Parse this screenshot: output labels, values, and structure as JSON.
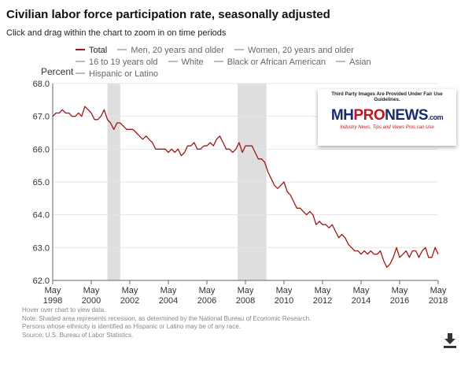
{
  "header": {
    "title": "Civilian labor force participation rate, seasonally adjusted",
    "subtitle": "Click and drag within the chart to zoom in on time periods"
  },
  "legend": [
    {
      "label": "Total",
      "color": "#a31515",
      "active": true
    },
    {
      "label": "Men, 20 years and older",
      "color": "#bbbbbb",
      "active": false
    },
    {
      "label": "Women, 20 years and older",
      "color": "#bbbbbb",
      "active": false
    },
    {
      "label": "16 to 19 years old",
      "color": "#bbbbbb",
      "active": false
    },
    {
      "label": "White",
      "color": "#bbbbbb",
      "active": false
    },
    {
      "label": "Black or African American",
      "color": "#bbbbbb",
      "active": false
    },
    {
      "label": "Asian",
      "color": "#bbbbbb",
      "active": false
    },
    {
      "label": "Hispanic or Latino",
      "color": "#bbbbbb",
      "active": false
    }
  ],
  "notes": [
    "Hover over chart to view data.",
    "Note: Shaded area represents recession, as determined by the National Bureau of Economic Research.",
    "Persons whose ethnicity is identified as Hispanic or Latino may be of any race.",
    "Source: U.S. Bureau of Labor Statistics."
  ],
  "watermark": {
    "note": "Third Party Images Are Provided Under Fair Use Guidelines.",
    "logo_a": "MH",
    "logo_b": "PRO",
    "logo_c": "NEWS",
    "logo_d": ".com",
    "tagline": "Industry News, Tips and Views Pros can Use"
  },
  "icons": {
    "download": "download-icon"
  },
  "chart_data": {
    "type": "line",
    "title": "Civilian labor force participation rate, seasonally adjusted",
    "ylabel": "Percent",
    "xlabel": "",
    "ylim": [
      62.0,
      68.0
    ],
    "xlim": [
      1998.33,
      2018.33
    ],
    "yticks": [
      "62.0",
      "63.0",
      "64.0",
      "65.0",
      "66.0",
      "67.0",
      "68.0"
    ],
    "xticks": [
      {
        "month": "May",
        "year": "1998",
        "value": 1998.33
      },
      {
        "month": "May",
        "year": "2000",
        "value": 2000.33
      },
      {
        "month": "May",
        "year": "2002",
        "value": 2002.33
      },
      {
        "month": "May",
        "year": "2004",
        "value": 2004.33
      },
      {
        "month": "May",
        "year": "2006",
        "value": 2006.33
      },
      {
        "month": "May",
        "year": "2008",
        "value": 2008.33
      },
      {
        "month": "May",
        "year": "2010",
        "value": 2010.33
      },
      {
        "month": "May",
        "year": "2012",
        "value": 2012.33
      },
      {
        "month": "May",
        "year": "2014",
        "value": 2014.33
      },
      {
        "month": "May",
        "year": "2016",
        "value": 2016.33
      },
      {
        "month": "May",
        "year": "2018",
        "value": 2018.33
      }
    ],
    "recessions": [
      [
        2001.17,
        2001.83
      ],
      [
        2007.92,
        2009.42
      ]
    ],
    "grid": "horizontal",
    "legend_position": "top",
    "series": [
      {
        "name": "Total",
        "color": "#a31515",
        "points": [
          [
            1998.33,
            67.0
          ],
          [
            1998.5,
            67.1
          ],
          [
            1998.67,
            67.1
          ],
          [
            1998.83,
            67.2
          ],
          [
            1999.0,
            67.1
          ],
          [
            1999.17,
            67.1
          ],
          [
            1999.33,
            67.0
          ],
          [
            1999.5,
            67.0
          ],
          [
            1999.67,
            67.1
          ],
          [
            1999.83,
            67.0
          ],
          [
            2000.0,
            67.3
          ],
          [
            2000.17,
            67.2
          ],
          [
            2000.33,
            67.1
          ],
          [
            2000.5,
            66.9
          ],
          [
            2000.67,
            66.9
          ],
          [
            2000.83,
            67.0
          ],
          [
            2001.0,
            67.2
          ],
          [
            2001.17,
            66.9
          ],
          [
            2001.33,
            66.8
          ],
          [
            2001.5,
            66.6
          ],
          [
            2001.67,
            66.8
          ],
          [
            2001.83,
            66.8
          ],
          [
            2002.0,
            66.7
          ],
          [
            2002.17,
            66.6
          ],
          [
            2002.33,
            66.6
          ],
          [
            2002.5,
            66.6
          ],
          [
            2002.67,
            66.5
          ],
          [
            2002.83,
            66.4
          ],
          [
            2003.0,
            66.3
          ],
          [
            2003.17,
            66.4
          ],
          [
            2003.33,
            66.3
          ],
          [
            2003.5,
            66.2
          ],
          [
            2003.67,
            66.0
          ],
          [
            2003.83,
            66.0
          ],
          [
            2004.0,
            66.0
          ],
          [
            2004.17,
            66.0
          ],
          [
            2004.33,
            65.9
          ],
          [
            2004.5,
            66.0
          ],
          [
            2004.67,
            65.9
          ],
          [
            2004.83,
            66.0
          ],
          [
            2005.0,
            65.8
          ],
          [
            2005.17,
            65.9
          ],
          [
            2005.33,
            66.1
          ],
          [
            2005.5,
            66.1
          ],
          [
            2005.67,
            66.2
          ],
          [
            2005.83,
            66.0
          ],
          [
            2006.0,
            66.0
          ],
          [
            2006.17,
            66.1
          ],
          [
            2006.33,
            66.1
          ],
          [
            2006.5,
            66.2
          ],
          [
            2006.67,
            66.1
          ],
          [
            2006.83,
            66.3
          ],
          [
            2007.0,
            66.4
          ],
          [
            2007.17,
            66.2
          ],
          [
            2007.33,
            66.0
          ],
          [
            2007.5,
            66.0
          ],
          [
            2007.67,
            65.9
          ],
          [
            2007.83,
            66.0
          ],
          [
            2008.0,
            66.2
          ],
          [
            2008.17,
            65.9
          ],
          [
            2008.33,
            66.1
          ],
          [
            2008.5,
            66.1
          ],
          [
            2008.67,
            66.1
          ],
          [
            2008.83,
            65.9
          ],
          [
            2009.0,
            65.7
          ],
          [
            2009.17,
            65.7
          ],
          [
            2009.33,
            65.6
          ],
          [
            2009.5,
            65.3
          ],
          [
            2009.67,
            65.1
          ],
          [
            2009.83,
            64.9
          ],
          [
            2010.0,
            64.8
          ],
          [
            2010.17,
            64.9
          ],
          [
            2010.33,
            65.0
          ],
          [
            2010.5,
            64.7
          ],
          [
            2010.67,
            64.6
          ],
          [
            2010.83,
            64.4
          ],
          [
            2011.0,
            64.2
          ],
          [
            2011.17,
            64.2
          ],
          [
            2011.33,
            64.1
          ],
          [
            2011.5,
            64.0
          ],
          [
            2011.67,
            64.1
          ],
          [
            2011.83,
            64.0
          ],
          [
            2012.0,
            63.7
          ],
          [
            2012.17,
            63.8
          ],
          [
            2012.33,
            63.7
          ],
          [
            2012.5,
            63.7
          ],
          [
            2012.67,
            63.6
          ],
          [
            2012.83,
            63.7
          ],
          [
            2013.0,
            63.5
          ],
          [
            2013.17,
            63.3
          ],
          [
            2013.33,
            63.4
          ],
          [
            2013.5,
            63.3
          ],
          [
            2013.67,
            63.1
          ],
          [
            2013.83,
            63.0
          ],
          [
            2014.0,
            62.9
          ],
          [
            2014.17,
            62.9
          ],
          [
            2014.33,
            62.8
          ],
          [
            2014.5,
            62.9
          ],
          [
            2014.67,
            62.8
          ],
          [
            2014.83,
            62.9
          ],
          [
            2015.0,
            62.8
          ],
          [
            2015.17,
            62.8
          ],
          [
            2015.33,
            62.9
          ],
          [
            2015.5,
            62.6
          ],
          [
            2015.67,
            62.4
          ],
          [
            2015.83,
            62.5
          ],
          [
            2016.0,
            62.7
          ],
          [
            2016.17,
            63.0
          ],
          [
            2016.33,
            62.7
          ],
          [
            2016.5,
            62.8
          ],
          [
            2016.67,
            62.9
          ],
          [
            2016.83,
            62.7
          ],
          [
            2017.0,
            62.9
          ],
          [
            2017.17,
            62.9
          ],
          [
            2017.33,
            62.7
          ],
          [
            2017.5,
            62.9
          ],
          [
            2017.67,
            63.0
          ],
          [
            2017.83,
            62.7
          ],
          [
            2018.0,
            62.7
          ],
          [
            2018.17,
            63.0
          ],
          [
            2018.33,
            62.8
          ]
        ]
      }
    ]
  }
}
